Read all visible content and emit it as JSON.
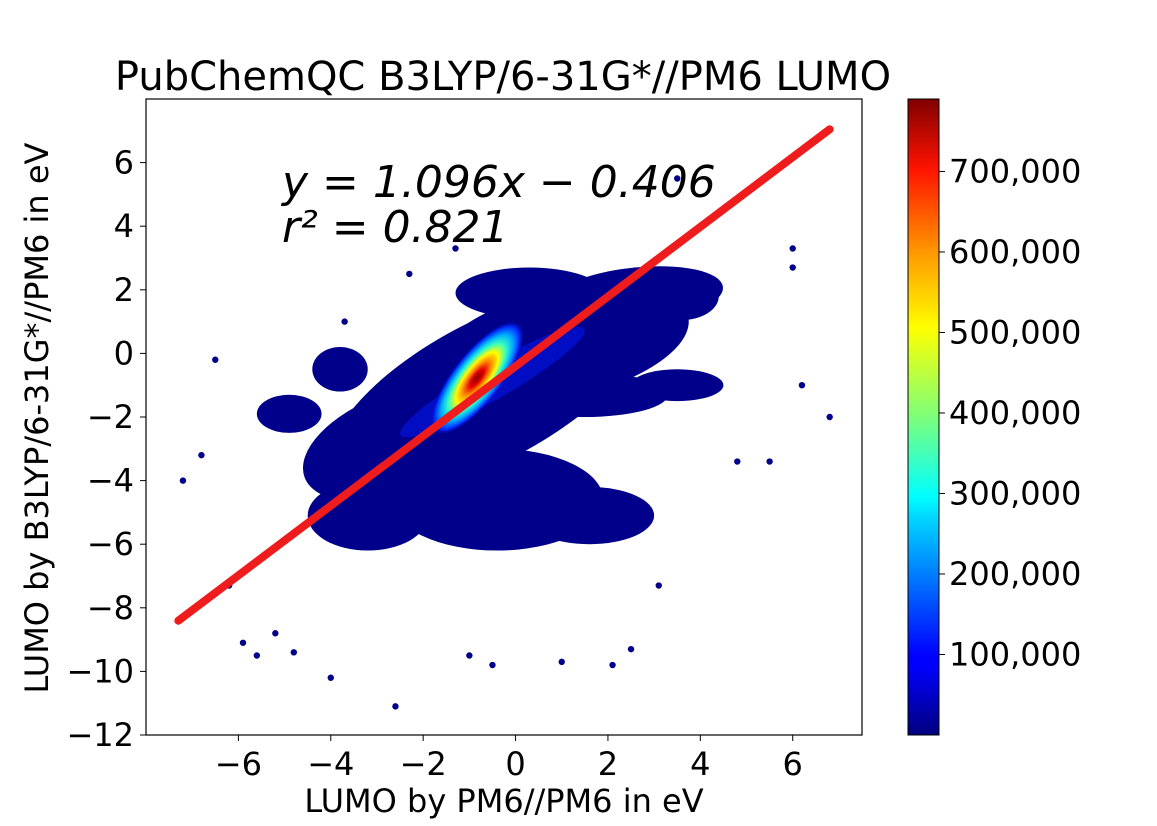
{
  "chart_data": {
    "type": "scatter",
    "title": "PubChemQC B3LYP/6-31G*//PM6 LUMO",
    "xlabel": "LUMO by PM6//PM6 in eV",
    "ylabel": "LUMO by B3LYP/6-31G*//PM6 in eV",
    "xlim": [
      -8.0,
      7.5
    ],
    "ylim": [
      -12,
      8
    ],
    "xticks": [
      -6,
      -4,
      -2,
      0,
      2,
      4,
      6
    ],
    "yticks": [
      -12,
      -10,
      -8,
      -6,
      -4,
      -2,
      0,
      2,
      4,
      6
    ],
    "xtick_labels": [
      "−6",
      "−4",
      "−2",
      "0",
      "2",
      "4",
      "6"
    ],
    "ytick_labels": [
      "−12",
      "−10",
      "−8",
      "−6",
      "−4",
      "−2",
      "0",
      "2",
      "4",
      "6"
    ],
    "fit": {
      "slope": 1.096,
      "intercept": -0.406,
      "x_range": [
        -7.3,
        6.8
      ],
      "color": "#ee1c1c"
    },
    "annotation_eq": "y = 1.096x − 0.406",
    "annotation_r2": "r² = 0.821",
    "colorbar": {
      "colormap": "jet",
      "min": 0,
      "max": 790000,
      "ticks": [
        100000,
        200000,
        300000,
        400000,
        500000,
        600000,
        700000
      ],
      "tick_labels": [
        "100,000",
        "200,000",
        "300,000",
        "400,000",
        "500,000",
        "600,000",
        "700,000"
      ]
    },
    "density_core": {
      "center": [
        -0.7,
        -0.9
      ],
      "peak_count": 790000
    },
    "outlier_points": [
      [
        -7.2,
        -4.0
      ],
      [
        -6.8,
        -3.2
      ],
      [
        -6.5,
        -0.2
      ],
      [
        -6.2,
        -7.3
      ],
      [
        -5.9,
        -9.1
      ],
      [
        -5.6,
        -9.5
      ],
      [
        -5.2,
        -8.8
      ],
      [
        -4.8,
        -9.4
      ],
      [
        -4.0,
        -10.2
      ],
      [
        -2.6,
        -11.1
      ],
      [
        -1.0,
        -9.5
      ],
      [
        -0.5,
        -9.8
      ],
      [
        1.0,
        -9.7
      ],
      [
        2.1,
        -9.8
      ],
      [
        2.5,
        -9.3
      ],
      [
        3.1,
        -7.3
      ],
      [
        4.8,
        -3.4
      ],
      [
        5.5,
        -3.4
      ],
      [
        6.2,
        -1.0
      ],
      [
        6.8,
        -2.0
      ],
      [
        6.0,
        3.3
      ],
      [
        6.0,
        2.7
      ],
      [
        -2.3,
        2.5
      ],
      [
        -1.3,
        3.3
      ],
      [
        3.5,
        5.5
      ],
      [
        -3.7,
        1.0
      ]
    ]
  }
}
